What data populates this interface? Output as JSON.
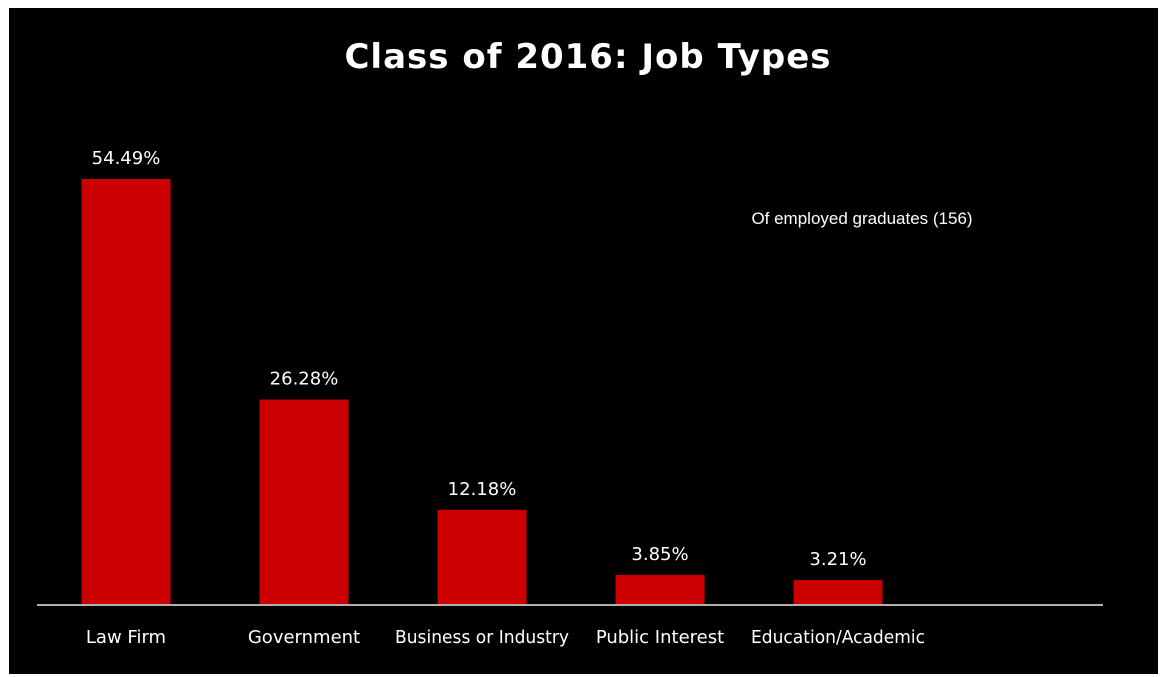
{
  "chart_data": {
    "type": "bar",
    "title": "Class of 2016: Job Types",
    "subtitle": "Of employed graduates (156)",
    "categories": [
      "Law Firm",
      "Government",
      "Business or Industry",
      "Public Interest",
      "Education/Academic"
    ],
    "values": [
      54.49,
      26.28,
      12.18,
      3.85,
      3.21
    ],
    "value_labels": [
      "54.49%",
      "26.28%",
      "12.18%",
      "3.85%",
      "3.21%"
    ],
    "ylim": [
      0,
      60
    ],
    "grid": false,
    "legend": "none",
    "colors": {
      "background": "#000000",
      "bar": "#cc0000",
      "axis": "#b0b0b0",
      "text": "#ffffff"
    }
  }
}
